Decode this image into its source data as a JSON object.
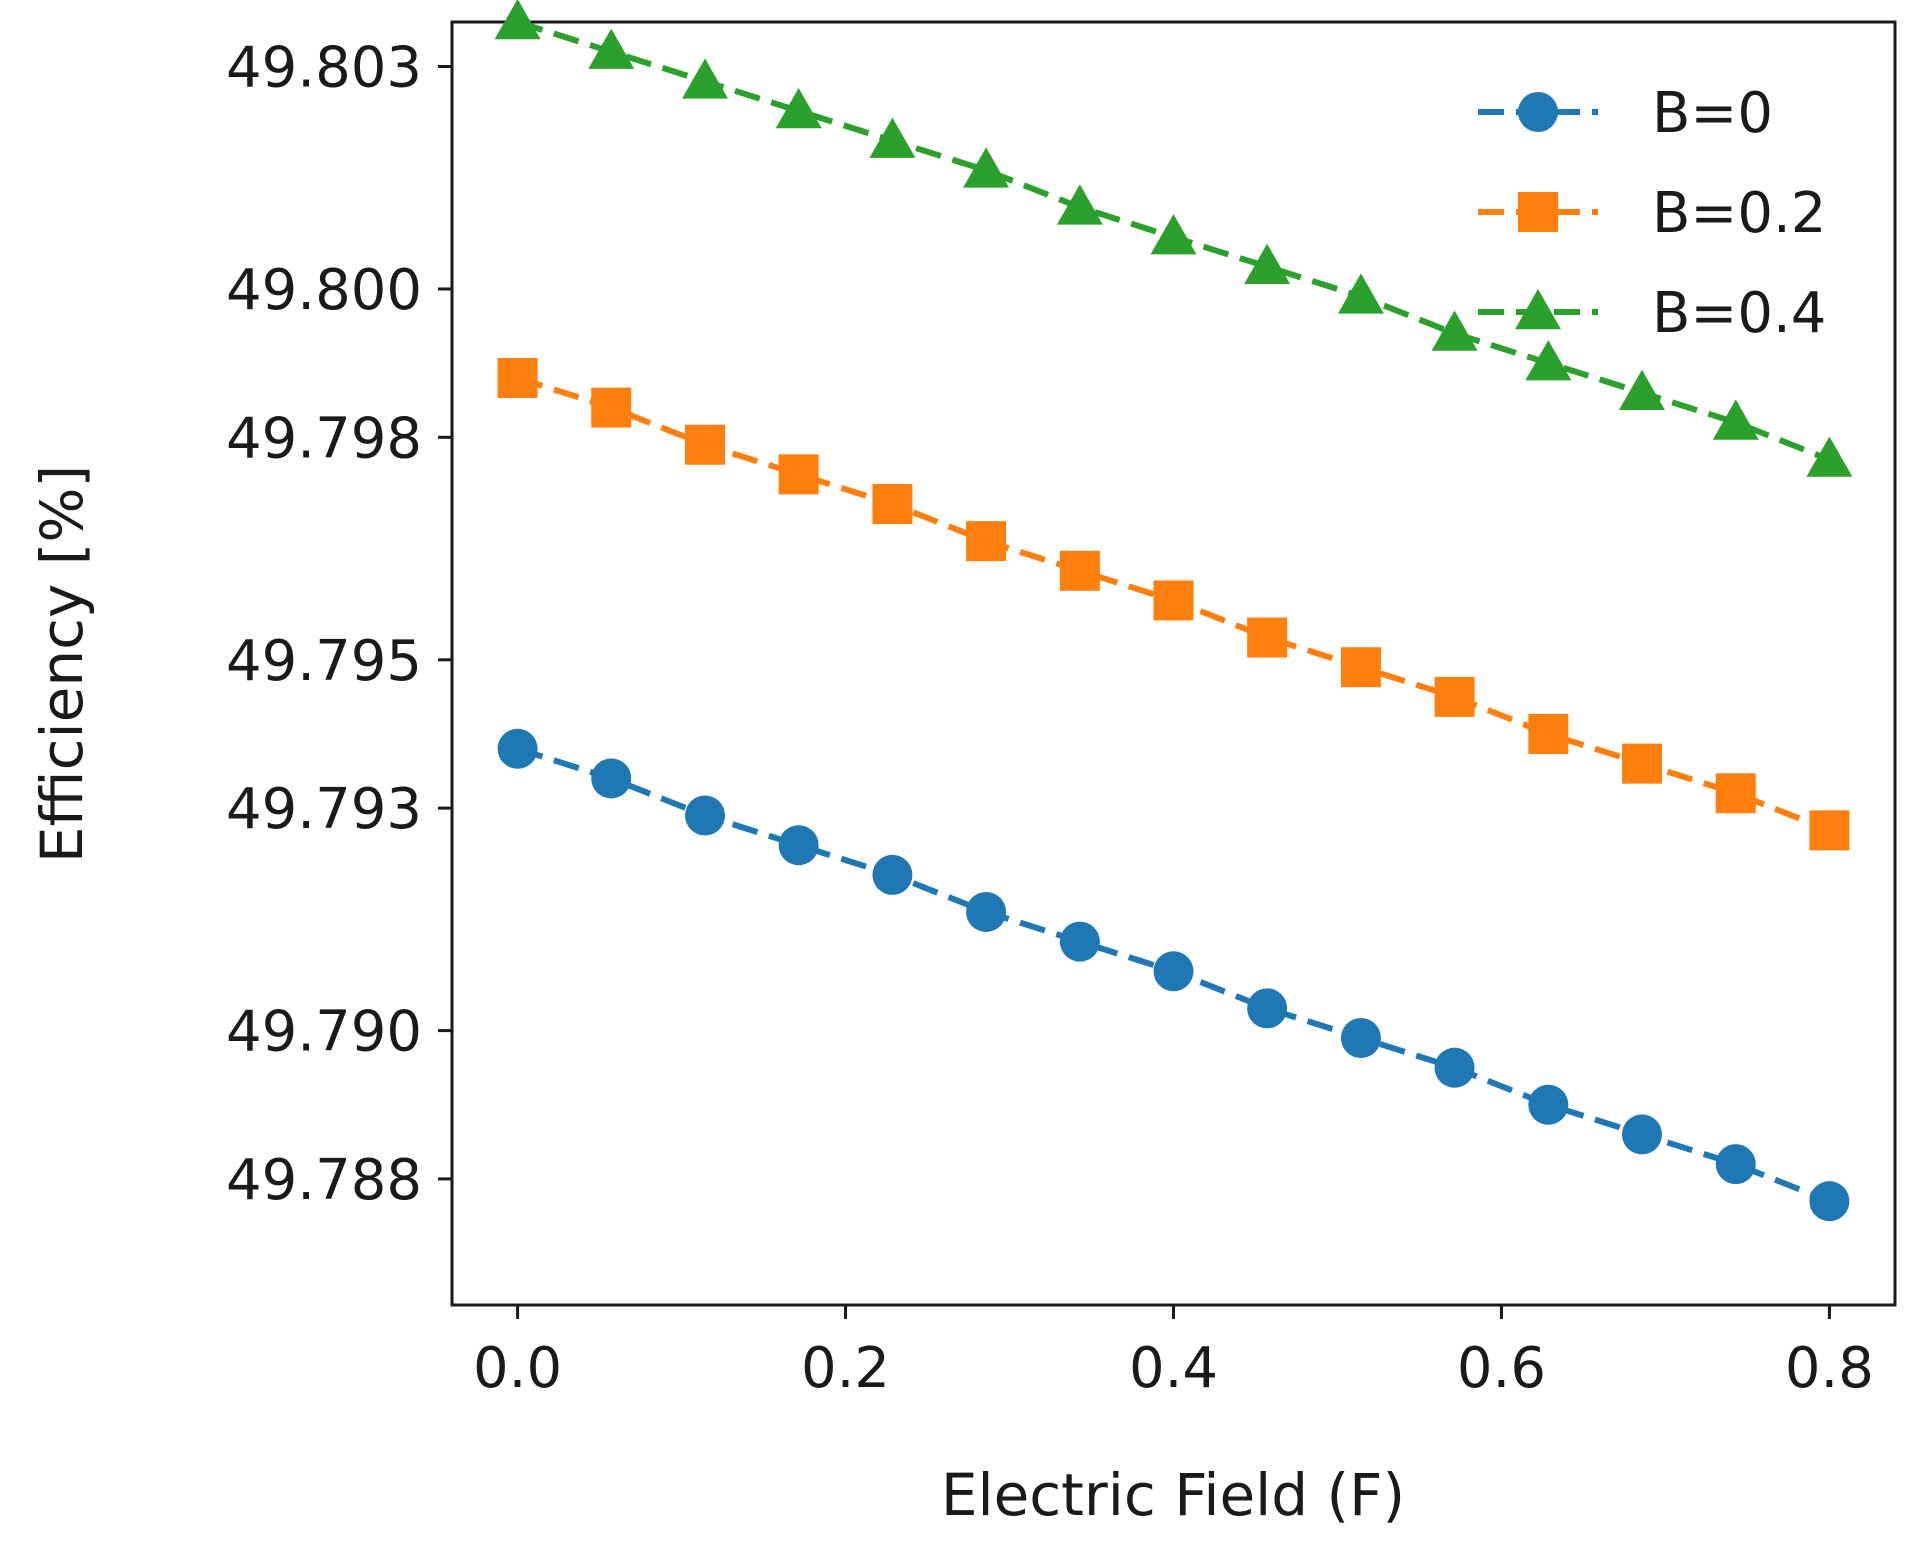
{
  "chart_data": {
    "type": "line",
    "title": "",
    "xlabel": "Electric Field (F)",
    "ylabel": "Efficiency [%]",
    "xlim": [
      -0.04,
      0.84
    ],
    "ylim": [
      49.7863,
      49.8036
    ],
    "x_ticks": [
      0.0,
      0.2,
      0.4,
      0.6,
      0.8
    ],
    "x_tick_labels": [
      "0.0",
      "0.2",
      "0.4",
      "0.6",
      "0.8"
    ],
    "y_ticks": [
      49.788,
      49.79,
      49.793,
      49.795,
      49.798,
      49.8,
      49.803
    ],
    "y_tick_labels": [
      "49.788",
      "49.790",
      "49.793",
      "49.795",
      "49.798",
      "49.800",
      "49.803"
    ],
    "grid": false,
    "legend_position": "top-right",
    "x": [
      0.0,
      0.0571,
      0.1143,
      0.1714,
      0.2286,
      0.2857,
      0.3429,
      0.4,
      0.4571,
      0.5143,
      0.5714,
      0.6286,
      0.6857,
      0.7429,
      0.8
    ],
    "series": [
      {
        "name": "B=0",
        "color": "#1f77b4",
        "marker": "circle",
        "values": [
          49.7938,
          49.7934,
          49.7929,
          49.7925,
          49.7921,
          49.7916,
          49.7912,
          49.7908,
          49.7903,
          49.7899,
          49.7895,
          49.789,
          49.7886,
          49.7882,
          49.7877
        ]
      },
      {
        "name": "B=0.2",
        "color": "#ff7f0e",
        "marker": "square",
        "values": [
          49.7988,
          49.7984,
          49.7979,
          49.7975,
          49.7971,
          49.7966,
          49.7962,
          49.7958,
          49.7953,
          49.7949,
          49.7945,
          49.794,
          49.7936,
          49.7932,
          49.7927
        ]
      },
      {
        "name": "B=0.4",
        "color": "#2ca02c",
        "marker": "triangle",
        "values": [
          49.8036,
          49.8032,
          49.8028,
          49.8024,
          49.802,
          49.8016,
          49.8011,
          49.8007,
          49.8003,
          49.7999,
          49.7994,
          49.799,
          49.7986,
          49.7982,
          49.7977
        ]
      }
    ]
  }
}
